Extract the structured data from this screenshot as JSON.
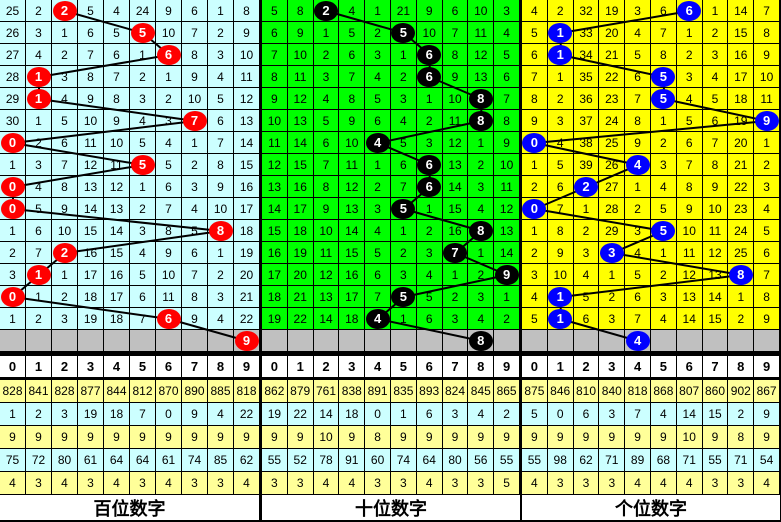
{
  "chart_data": {
    "type": "table",
    "panels": [
      {
        "label": "百位数字",
        "bg_color": "#ccffff",
        "ball_color": "#ff0000",
        "rows": [
          [
            25,
            2,
            2,
            5,
            4,
            24,
            9,
            6,
            1,
            8
          ],
          [
            26,
            3,
            1,
            6,
            5,
            5,
            10,
            7,
            2,
            9
          ],
          [
            27,
            4,
            2,
            7,
            6,
            1,
            6,
            8,
            3,
            10
          ],
          [
            28,
            1,
            3,
            8,
            7,
            2,
            1,
            9,
            4,
            11
          ],
          [
            29,
            1,
            4,
            9,
            8,
            3,
            2,
            10,
            5,
            12
          ],
          [
            30,
            1,
            5,
            10,
            9,
            4,
            3,
            7,
            6,
            13
          ],
          [
            0,
            2,
            6,
            11,
            10,
            5,
            4,
            1,
            7,
            14
          ],
          [
            1,
            3,
            7,
            12,
            11,
            5,
            5,
            2,
            8,
            15
          ],
          [
            0,
            4,
            8,
            13,
            12,
            1,
            6,
            3,
            9,
            16
          ],
          [
            0,
            5,
            9,
            14,
            13,
            2,
            7,
            4,
            10,
            17
          ],
          [
            1,
            6,
            10,
            15,
            14,
            3,
            8,
            5,
            8,
            18
          ],
          [
            2,
            7,
            2,
            16,
            15,
            4,
            9,
            6,
            1,
            19
          ],
          [
            3,
            1,
            1,
            17,
            16,
            5,
            10,
            7,
            2,
            20
          ],
          [
            0,
            1,
            2,
            18,
            17,
            6,
            11,
            8,
            3,
            21
          ],
          [
            1,
            2,
            3,
            19,
            18,
            7,
            6,
            9,
            4,
            22
          ]
        ],
        "drawn_digits": [
          2,
          5,
          6,
          1,
          1,
          7,
          0,
          5,
          0,
          0,
          8,
          2,
          1,
          0,
          6
        ],
        "next_digit": 9,
        "stats_header": [
          "0",
          "1",
          "2",
          "3",
          "4",
          "5",
          "6",
          "7",
          "8",
          "9"
        ],
        "stats": [
          [
            828,
            841,
            828,
            877,
            844,
            812,
            870,
            890,
            885,
            818
          ],
          [
            1,
            2,
            3,
            19,
            18,
            7,
            0,
            9,
            4,
            22
          ],
          [
            9,
            9,
            9,
            9,
            9,
            9,
            9,
            9,
            9,
            9
          ],
          [
            75,
            72,
            80,
            61,
            64,
            64,
            61,
            74,
            85,
            62
          ],
          [
            4,
            3,
            4,
            3,
            4,
            3,
            4,
            3,
            3,
            4
          ]
        ]
      },
      {
        "label": "十位数字",
        "bg_color": "#00ff00",
        "ball_color": "#000000",
        "rows": [
          [
            5,
            8,
            2,
            4,
            1,
            21,
            9,
            6,
            10,
            3
          ],
          [
            6,
            9,
            1,
            5,
            2,
            5,
            10,
            7,
            11,
            4
          ],
          [
            7,
            10,
            2,
            6,
            3,
            1,
            6,
            8,
            12,
            5
          ],
          [
            8,
            11,
            3,
            7,
            4,
            2,
            6,
            9,
            13,
            6
          ],
          [
            9,
            12,
            4,
            8,
            5,
            3,
            1,
            10,
            8,
            7
          ],
          [
            10,
            13,
            5,
            9,
            6,
            4,
            2,
            11,
            8,
            8
          ],
          [
            11,
            14,
            6,
            10,
            4,
            5,
            3,
            12,
            1,
            9
          ],
          [
            12,
            15,
            7,
            11,
            1,
            6,
            6,
            13,
            2,
            10
          ],
          [
            13,
            16,
            8,
            12,
            2,
            7,
            6,
            14,
            3,
            11
          ],
          [
            14,
            17,
            9,
            13,
            3,
            5,
            1,
            15,
            4,
            12
          ],
          [
            15,
            18,
            10,
            14,
            4,
            1,
            2,
            16,
            8,
            13
          ],
          [
            16,
            19,
            11,
            15,
            5,
            2,
            3,
            7,
            1,
            14
          ],
          [
            17,
            20,
            12,
            16,
            6,
            3,
            4,
            1,
            2,
            9
          ],
          [
            18,
            21,
            13,
            17,
            7,
            5,
            5,
            2,
            3,
            1
          ],
          [
            19,
            22,
            14,
            18,
            4,
            1,
            6,
            3,
            4,
            2
          ]
        ],
        "drawn_digits": [
          2,
          5,
          6,
          6,
          8,
          8,
          4,
          6,
          6,
          5,
          8,
          7,
          9,
          5,
          4
        ],
        "next_digit": 8,
        "stats_header": [
          "0",
          "1",
          "2",
          "3",
          "4",
          "5",
          "6",
          "7",
          "8",
          "9"
        ],
        "stats": [
          [
            862,
            879,
            761,
            838,
            891,
            835,
            893,
            824,
            845,
            865
          ],
          [
            19,
            22,
            14,
            18,
            0,
            1,
            6,
            3,
            4,
            2
          ],
          [
            9,
            9,
            10,
            9,
            8,
            9,
            9,
            9,
            9,
            9
          ],
          [
            55,
            52,
            78,
            91,
            60,
            74,
            64,
            80,
            56,
            55
          ],
          [
            3,
            3,
            4,
            4,
            3,
            3,
            4,
            3,
            3,
            5
          ]
        ]
      },
      {
        "label": "个位数字",
        "bg_color": "#ffff00",
        "ball_color": "#0000ff",
        "rows": [
          [
            4,
            2,
            32,
            19,
            3,
            6,
            6,
            1,
            14,
            7
          ],
          [
            5,
            1,
            33,
            20,
            4,
            7,
            1,
            2,
            15,
            8
          ],
          [
            6,
            1,
            34,
            21,
            5,
            8,
            2,
            3,
            16,
            9
          ],
          [
            7,
            1,
            35,
            22,
            6,
            5,
            3,
            4,
            17,
            10
          ],
          [
            8,
            2,
            36,
            23,
            7,
            5,
            4,
            5,
            18,
            11
          ],
          [
            9,
            3,
            37,
            24,
            8,
            1,
            5,
            6,
            19,
            9
          ],
          [
            0,
            4,
            38,
            25,
            9,
            2,
            6,
            7,
            20,
            1
          ],
          [
            1,
            5,
            39,
            26,
            4,
            3,
            7,
            8,
            21,
            2
          ],
          [
            2,
            6,
            2,
            27,
            1,
            4,
            8,
            9,
            22,
            3
          ],
          [
            0,
            7,
            1,
            28,
            2,
            5,
            9,
            10,
            23,
            4
          ],
          [
            1,
            8,
            2,
            29,
            3,
            5,
            10,
            11,
            24,
            5
          ],
          [
            2,
            9,
            3,
            3,
            4,
            1,
            11,
            12,
            25,
            6
          ],
          [
            3,
            10,
            4,
            1,
            5,
            2,
            12,
            13,
            8,
            7
          ],
          [
            4,
            1,
            5,
            2,
            6,
            3,
            13,
            14,
            1,
            8
          ],
          [
            5,
            1,
            6,
            3,
            7,
            4,
            14,
            15,
            2,
            9
          ]
        ],
        "drawn_digits": [
          6,
          1,
          1,
          5,
          5,
          9,
          0,
          4,
          2,
          0,
          5,
          3,
          8,
          1,
          1
        ],
        "next_digit": 4,
        "stats_header": [
          "0",
          "1",
          "2",
          "3",
          "4",
          "5",
          "6",
          "7",
          "8",
          "9"
        ],
        "stats": [
          [
            875,
            846,
            810,
            840,
            818,
            868,
            807,
            860,
            902,
            867
          ],
          [
            5,
            0,
            6,
            3,
            7,
            4,
            14,
            15,
            2,
            9
          ],
          [
            9,
            9,
            9,
            9,
            9,
            9,
            10,
            9,
            8,
            9
          ],
          [
            55,
            98,
            62,
            71,
            89,
            68,
            71,
            55,
            71,
            54
          ],
          [
            4,
            3,
            3,
            3,
            4,
            4,
            4,
            3,
            3,
            4
          ]
        ]
      }
    ],
    "grid_background_next_row": "#c0c0c0",
    "stats_row_colors": [
      "#ffff99",
      "#ccffff",
      "#ffff99",
      "#ccffff",
      "#ffff99"
    ]
  }
}
